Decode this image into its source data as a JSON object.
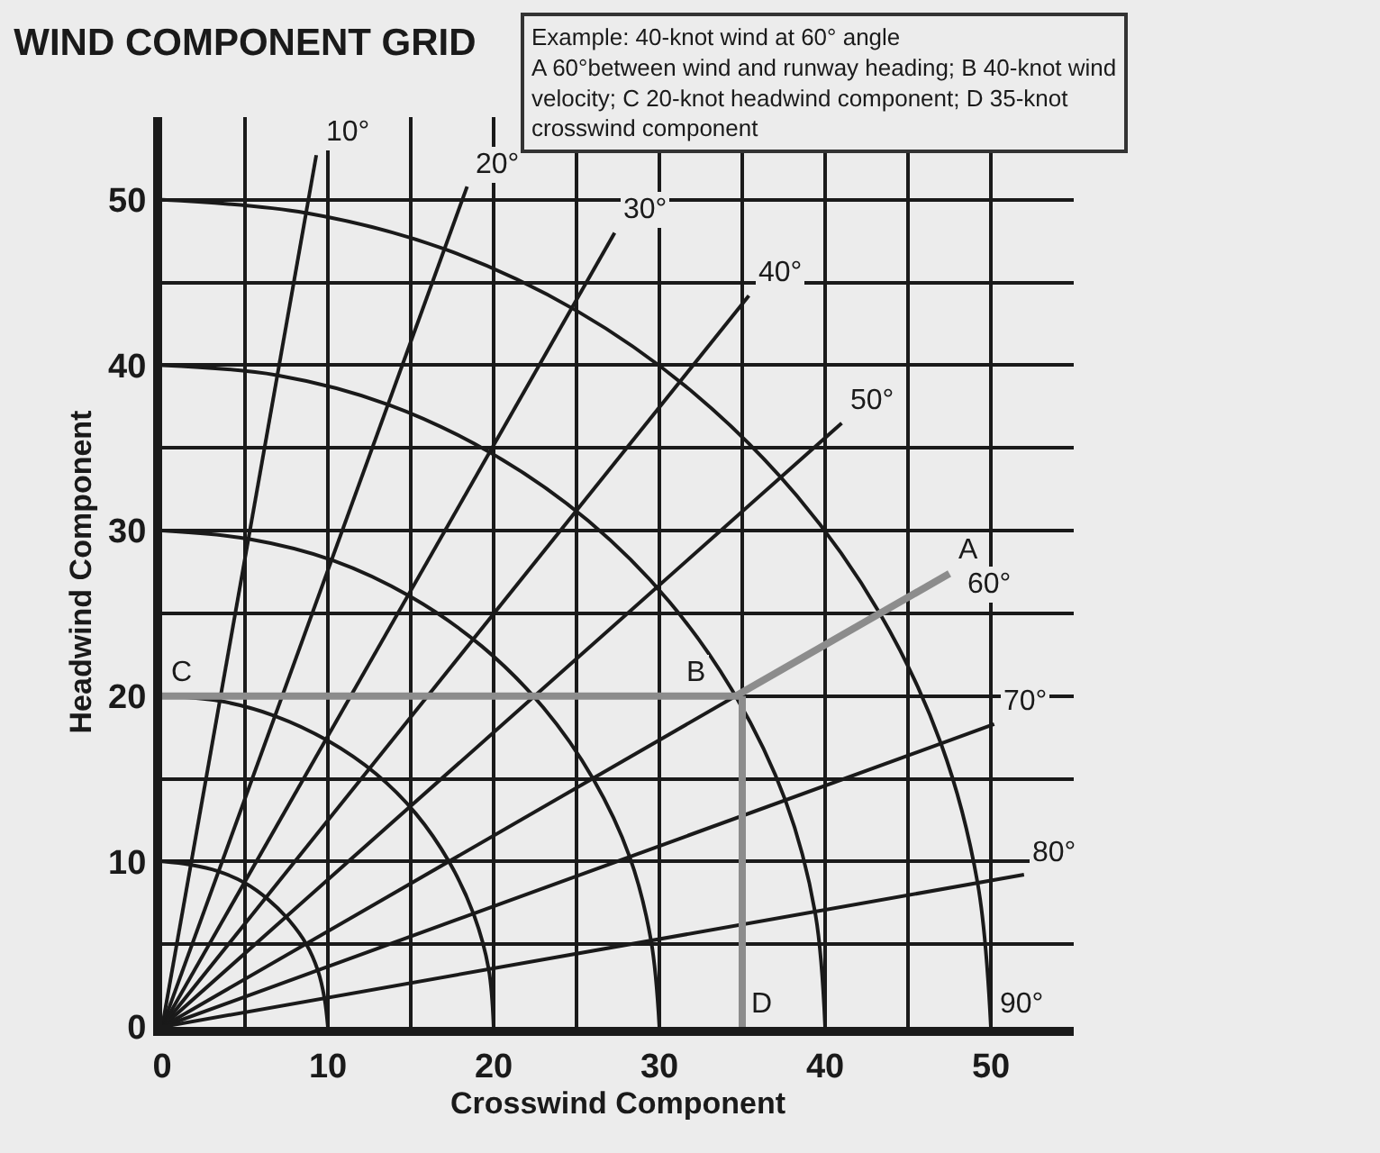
{
  "chart_data": {
    "type": "line",
    "title": "WIND COMPONENT GRID",
    "xlabel": "Crosswind Component",
    "ylabel": "Headwind Component",
    "xlim": [
      0,
      55
    ],
    "ylim": [
      0,
      55
    ],
    "xticks": [
      0,
      {
        "value": 5,
        "label": null
      },
      10,
      {
        "value": 15,
        "label": null
      },
      20,
      {
        "value": 25,
        "label": null
      },
      30,
      {
        "value": 35,
        "label": null
      },
      40,
      {
        "value": 45,
        "label": null
      },
      50
    ],
    "yticks": [
      0,
      {
        "value": 5,
        "label": null
      },
      10,
      {
        "value": 15,
        "label": null
      },
      20,
      {
        "value": 25,
        "label": null
      },
      30,
      {
        "value": 35,
        "label": null
      },
      40,
      {
        "value": 45,
        "label": null
      },
      50
    ],
    "grid": true,
    "marker": "none",
    "line_style": "solid",
    "series": [
      {
        "color": "#1a1a1a",
        "x": [
          0,
          1.7,
          3.4,
          5,
          6.4,
          7.7,
          8.7,
          9.4,
          9.8,
          10
        ],
        "values": [
          10,
          9.8,
          9.4,
          8.7,
          7.7,
          6.4,
          5,
          3.4,
          1.7,
          0
        ]
      },
      {
        "color": "#1a1a1a",
        "x": [
          0,
          3.5,
          6.8,
          10,
          12.9,
          15.3,
          17.3,
          18.8,
          19.7,
          20
        ],
        "values": [
          20,
          19.7,
          18.8,
          17.3,
          15.3,
          12.9,
          10,
          6.8,
          3.5,
          0
        ]
      },
      {
        "color": "#1a1a1a",
        "x": [
          0,
          5.2,
          10.3,
          15,
          19.3,
          23,
          26,
          28.2,
          29.5,
          30
        ],
        "values": [
          30,
          29.5,
          28.2,
          26,
          23,
          19.3,
          15,
          10.3,
          5.2,
          0
        ]
      },
      {
        "color": "#1a1a1a",
        "x": [
          0,
          6.9,
          13.7,
          20,
          25.7,
          30.6,
          34.6,
          37.6,
          39.4,
          40
        ],
        "values": [
          40,
          39.4,
          37.6,
          34.6,
          30.6,
          25.7,
          20,
          13.7,
          6.9,
          0
        ]
      },
      {
        "color": "#1a1a1a",
        "x": [
          0,
          8.7,
          17.1,
          25,
          32.1,
          38.3,
          43.3,
          47,
          49.2,
          50
        ],
        "values": [
          50,
          49.2,
          47,
          43.3,
          38.3,
          32.1,
          25,
          17.1,
          8.7,
          0
        ]
      },
      {
        "color": "#1a1a1a",
        "x": [
          0,
          9.3
        ],
        "values": [
          0,
          52.7
        ]
      },
      {
        "color": "#1a1a1a",
        "x": [
          0,
          18.4
        ],
        "values": [
          0,
          50.8
        ]
      },
      {
        "color": "#1a1a1a",
        "x": [
          0,
          27.3
        ],
        "values": [
          0,
          48
        ]
      },
      {
        "color": "#1a1a1a",
        "x": [
          0,
          35.4
        ],
        "values": [
          0,
          44.2
        ]
      },
      {
        "color": "#1a1a1a",
        "x": [
          0,
          41
        ],
        "values": [
          0,
          36.5
        ]
      },
      {
        "color": "#1a1a1a",
        "x": [
          0,
          34.6
        ],
        "values": [
          0,
          20
        ]
      },
      {
        "color": "#1a1a1a",
        "x": [
          0,
          50.2
        ],
        "values": [
          0,
          18.3
        ]
      },
      {
        "color": "#1a1a1a",
        "x": [
          0,
          52
        ],
        "values": [
          0,
          9.2
        ]
      },
      {
        "color": "#8c8c8c",
        "x": [
          0,
          35
        ],
        "values": [
          20,
          20
        ]
      },
      {
        "color": "#8c8c8c",
        "x": [
          35,
          35
        ],
        "values": [
          20,
          0
        ]
      },
      {
        "color": "#8c8c8c",
        "x": [
          34.6,
          47.5
        ],
        "values": [
          20,
          27.4
        ]
      }
    ],
    "annotations": [
      "Example: 40-knot wind at 60° angle",
      "A 60°between wind and runway heading; B 40-knot wind velocity; C 20-knot headwind component; D 35-knot crosswind component",
      {
        "text": "10°",
        "x": 9.3,
        "y": 52.7
      },
      {
        "text": "20°",
        "x": 18.4,
        "y": 50.8
      },
      {
        "text": "30°",
        "x": 27.3,
        "y": 48
      },
      {
        "text": "40°",
        "x": 35.4,
        "y": 44.2
      },
      {
        "text": "50°",
        "x": 41,
        "y": 36.5
      },
      {
        "text": "A",
        "x": 47.5,
        "y": 27.4
      },
      {
        "text": "60°",
        "x": 47.5,
        "y": 27.4
      },
      {
        "text": "70°",
        "x": 50.2,
        "y": 18.3
      },
      {
        "text": "80°",
        "x": 52,
        "y": 9.2
      },
      {
        "text": "90°",
        "x": 50,
        "y": 0
      },
      {
        "text": "B",
        "x": 35,
        "y": 20
      },
      {
        "text": "C",
        "x": 0,
        "y": 20
      },
      {
        "text": "D",
        "x": 35,
        "y": 0
      }
    ]
  }
}
